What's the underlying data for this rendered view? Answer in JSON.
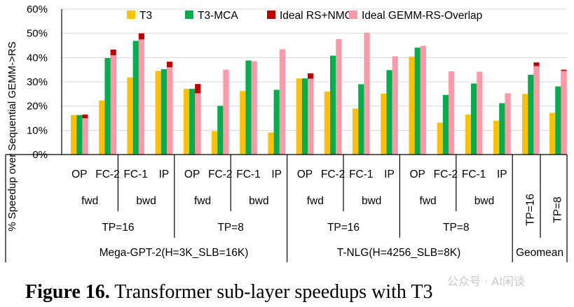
{
  "chart_data": {
    "type": "bar",
    "ylabel": "% Speedup over Sequential GEMM->RS",
    "ylim": [
      0,
      60
    ],
    "yticks": [
      "0%",
      "10%",
      "20%",
      "30%",
      "40%",
      "50%",
      "60%"
    ],
    "series": [
      {
        "name": "T3",
        "color": "#FFC000"
      },
      {
        "name": "T3-MCA",
        "color": "#00B050"
      },
      {
        "name": "Ideal RS+NMC",
        "color": "#C00000"
      },
      {
        "name": "Ideal GEMM-RS-Overlap",
        "color": "#FF99A8"
      }
    ],
    "categories": [
      {
        "label": "OP",
        "t3": 16.3,
        "mca": 16.3,
        "nmc": 16.5,
        "overlap": 15.0
      },
      {
        "label": "FC-2",
        "t3": 22.3,
        "mca": 39.8,
        "nmc": 43.3,
        "overlap": 41.0
      },
      {
        "label": "FC-1",
        "t3": 31.8,
        "mca": 46.9,
        "nmc": 50.0,
        "overlap": 47.5
      },
      {
        "label": "IP",
        "t3": 34.5,
        "mca": 35.2,
        "nmc": 38.3,
        "overlap": 36.0
      },
      {
        "label": "OP",
        "t3": 27.1,
        "mca": 27.1,
        "nmc": 29.1,
        "overlap": 25.3
      },
      {
        "label": "FC-2",
        "t3": 9.7,
        "mca": 20.1,
        "nmc": null,
        "overlap": 35.0
      },
      {
        "label": "FC-1",
        "t3": 26.2,
        "mca": 38.8,
        "nmc": null,
        "overlap": 38.5
      },
      {
        "label": "IP",
        "t3": 9.1,
        "mca": 26.7,
        "nmc": null,
        "overlap": 43.4
      },
      {
        "label": "OP",
        "t3": 31.4,
        "mca": 31.4,
        "nmc": 33.5,
        "overlap": 31.3
      },
      {
        "label": "FC-2",
        "t3": 26.0,
        "mca": 40.8,
        "nmc": null,
        "overlap": 47.6
      },
      {
        "label": "FC-1",
        "t3": 19.0,
        "mca": 29.0,
        "nmc": null,
        "overlap": 50.3
      },
      {
        "label": "IP",
        "t3": 25.1,
        "mca": 34.8,
        "nmc": null,
        "overlap": 40.5
      },
      {
        "label": "OP",
        "t3": 40.4,
        "mca": 44.1,
        "nmc": null,
        "overlap": 44.9
      },
      {
        "label": "FC-2",
        "t3": 13.2,
        "mca": 24.6,
        "nmc": null,
        "overlap": 34.3
      },
      {
        "label": "FC-1",
        "t3": 16.5,
        "mca": 29.3,
        "nmc": null,
        "overlap": 34.2
      },
      {
        "label": "IP",
        "t3": 14.0,
        "mca": 21.2,
        "nmc": null,
        "overlap": 25.3
      },
      {
        "label": "TP=16",
        "t3": 25.0,
        "mca": 32.9,
        "nmc": 38.0,
        "overlap": 36.5
      },
      {
        "label": "TP=8",
        "t3": 17.2,
        "mca": 28.1,
        "nmc": 35.0,
        "overlap": 34.5
      }
    ],
    "group_levels": [
      [
        "fwd",
        "bwd",
        "fwd",
        "bwd",
        "fwd",
        "bwd",
        "fwd",
        "bwd"
      ],
      [
        "TP=16",
        "TP=8",
        "TP=16",
        "TP=8"
      ],
      [
        "Mega-GPT-2(H=3K_SLB=16K)",
        "T-NLG(H=4256_SLB=8K)",
        "Geomean"
      ]
    ]
  },
  "caption": {
    "bold": "Figure 16.",
    "text": " Transformer sub-layer speedups with T3"
  },
  "watermark": "公众号 · AI闲谈"
}
